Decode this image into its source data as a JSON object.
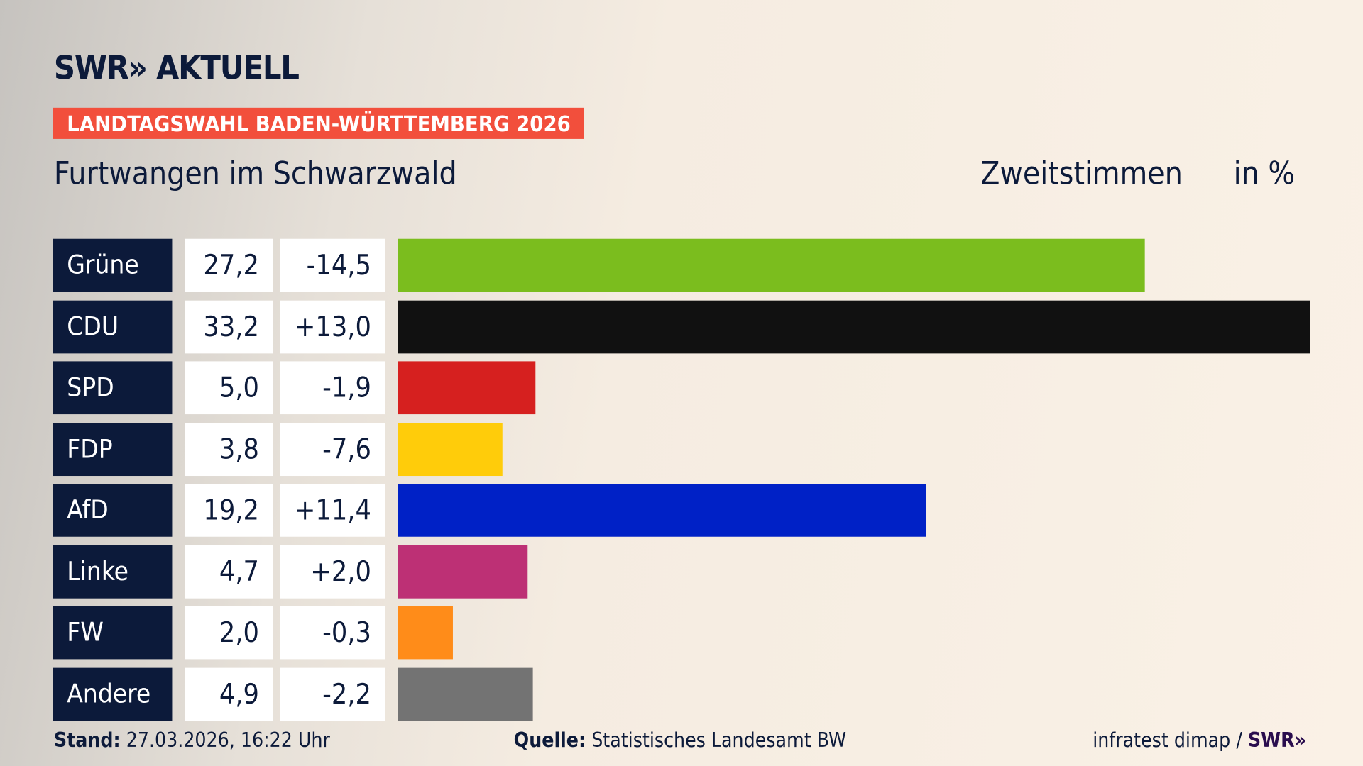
{
  "header": {
    "logo": "SWR» AKTUELL",
    "badge": "LANDTAGSWAHL BADEN-WÜRTTEMBERG 2026",
    "place": "Furtwangen im Schwarzwald",
    "metric": "Zweitstimmen",
    "unit": "in %"
  },
  "chart_data": {
    "type": "bar",
    "orientation": "horizontal",
    "categories": [
      "Grüne",
      "CDU",
      "SPD",
      "FDP",
      "AfD",
      "Linke",
      "FW",
      "Andere"
    ],
    "values": [
      27.2,
      33.2,
      5.0,
      3.8,
      19.2,
      4.7,
      2.0,
      4.9
    ],
    "value_labels": [
      "27,2",
      "33,2",
      "5,0",
      "3,8",
      "19,2",
      "4,7",
      "2,0",
      "4,9"
    ],
    "diff_labels": [
      "-14,5",
      "+13,0",
      "-1,9",
      "-7,6",
      "+11,4",
      "+2,0",
      "-0,3",
      "-2,2"
    ],
    "colors": [
      "#7bbd1e",
      "#111111",
      "#d6201f",
      "#ffcc0a",
      "#0021c6",
      "#bd3075",
      "#ff8c19",
      "#737373"
    ],
    "xlim": [
      0,
      33.2
    ],
    "grid": false
  },
  "footer": {
    "stand_label": "Stand:",
    "stand_value": "27.03.2026, 16:22 Uhr",
    "source_label": "Quelle:",
    "source_value": "Statistisches Landesamt BW",
    "credit": "infratest dimap / ",
    "credit_logo": "SWR»"
  }
}
